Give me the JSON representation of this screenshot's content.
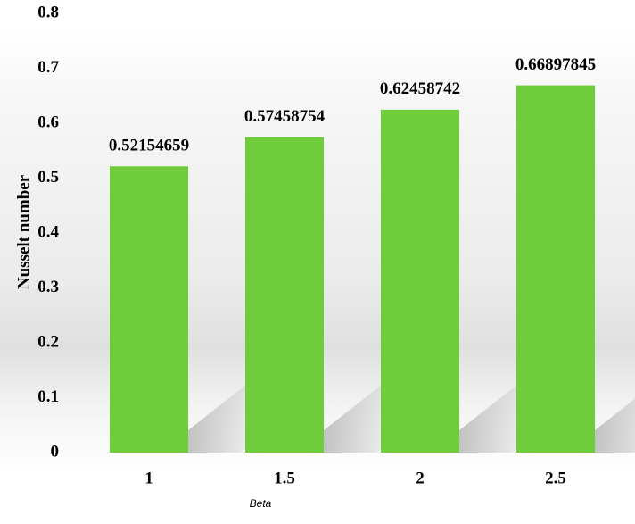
{
  "chart_data": {
    "type": "bar",
    "categories": [
      "1",
      "1.5",
      "2",
      "2.5"
    ],
    "values": [
      0.52154659,
      0.57458754,
      0.62458742,
      0.66897845
    ],
    "color": "#6fcd3b",
    "ylim": [
      0,
      0.8
    ],
    "yticks": [
      0,
      0.1,
      0.2,
      0.3,
      0.4,
      0.5,
      0.6,
      0.7,
      0.8
    ],
    "y_label": "Nusselt number",
    "x_label": "Beta"
  }
}
